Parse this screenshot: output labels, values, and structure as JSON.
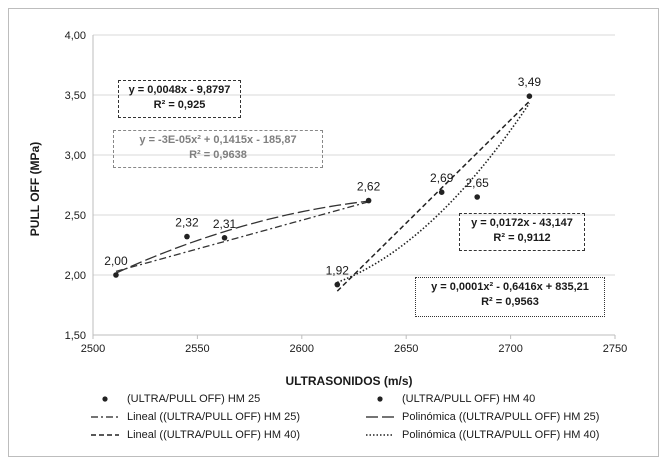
{
  "chart_data": {
    "type": "scatter",
    "xlabel": "ULTRASONIDOS (m/s)",
    "ylabel": "PULL OFF (MPa)",
    "xlim": [
      2500,
      2750
    ],
    "ylim": [
      1.5,
      4.0
    ],
    "x_ticks": [
      "2500",
      "2550",
      "2600",
      "2650",
      "2700",
      "2750"
    ],
    "y_ticks": [
      "1,50",
      "2,00",
      "2,50",
      "3,00",
      "3,50",
      "4,00"
    ],
    "grid": "horizontal",
    "legend_position": "bottom",
    "series": [
      {
        "name": "(ULTRA/PULL OFF) HM 25",
        "points": [
          {
            "x": 2511,
            "y": 2.0,
            "label": "2,00"
          },
          {
            "x": 2545,
            "y": 2.32,
            "label": "2,32"
          },
          {
            "x": 2563,
            "y": 2.31,
            "label": "2,31"
          },
          {
            "x": 2632,
            "y": 2.62,
            "label": "2,62"
          }
        ]
      },
      {
        "name": "(ULTRA/PULL OFF) HM 40",
        "points": [
          {
            "x": 2617,
            "y": 1.92,
            "label": "1,92"
          },
          {
            "x": 2667,
            "y": 2.69,
            "label": "2,69"
          },
          {
            "x": 2684,
            "y": 2.65,
            "label": "2,65"
          },
          {
            "x": 2709,
            "y": 3.49,
            "label": "3,49"
          }
        ]
      }
    ],
    "trendlines": [
      {
        "name": "Lineal ((ULTRA/PULL OFF) HM 25)",
        "kind": "linear",
        "equation": "y = 0,0048x - 9,8797",
        "r2": "R² = 0,925",
        "x_range": [
          2511,
          2632
        ],
        "y_range": [
          2.03,
          2.61
        ]
      },
      {
        "name": "Polinómica ((ULTRA/PULL OFF) HM 25)",
        "kind": "poly",
        "equation": "y = -3E-05x² + 0,1415x - 185,87",
        "r2": "R² = 0,9638",
        "x_range": [
          2511,
          2632
        ]
      },
      {
        "name": "Lineal ((ULTRA/PULL OFF) HM 40)",
        "kind": "linear",
        "equation": "y = 0,0172x - 43,147",
        "r2": "R² = 0,9112",
        "x_range": [
          2617,
          2709
        ]
      },
      {
        "name": "Polinómica ((ULTRA/PULL OFF) HM 40)",
        "kind": "poly",
        "equation": "y = 0,0001x² - 0,6416x + 835,21",
        "r2": "R² = 0,9563",
        "x_range": [
          2617,
          2709
        ]
      }
    ]
  }
}
